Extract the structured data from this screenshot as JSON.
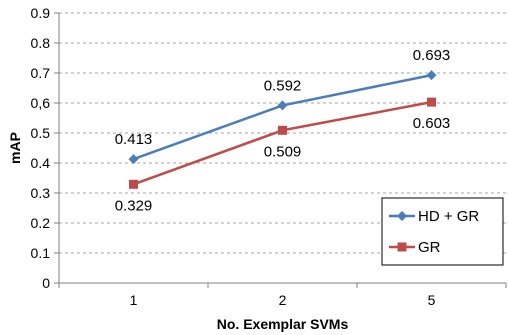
{
  "chart_data": {
    "type": "line",
    "categories": [
      "1",
      "2",
      "5"
    ],
    "xlabel": "No. Exemplar SVMs",
    "ylabel": "mAP",
    "ylim": [
      0,
      0.9
    ],
    "yticks": [
      "0",
      "0.1",
      "0.2",
      "0.3",
      "0.4",
      "0.5",
      "0,6",
      "0.7",
      "0.8",
      "0.9"
    ],
    "grid": true,
    "legend_position": "bottom-right",
    "series": [
      {
        "name": "HD + GR",
        "values": [
          0.413,
          0.592,
          0.693
        ],
        "labels": [
          "0.413",
          "0.592",
          "0.693"
        ],
        "color": "#4a7ebb",
        "marker": "diamond"
      },
      {
        "name": "GR",
        "values": [
          0.329,
          0.509,
          0.603
        ],
        "labels": [
          "0.329",
          "0.509",
          "0.603"
        ],
        "color": "#be4b48",
        "marker": "square"
      }
    ]
  }
}
